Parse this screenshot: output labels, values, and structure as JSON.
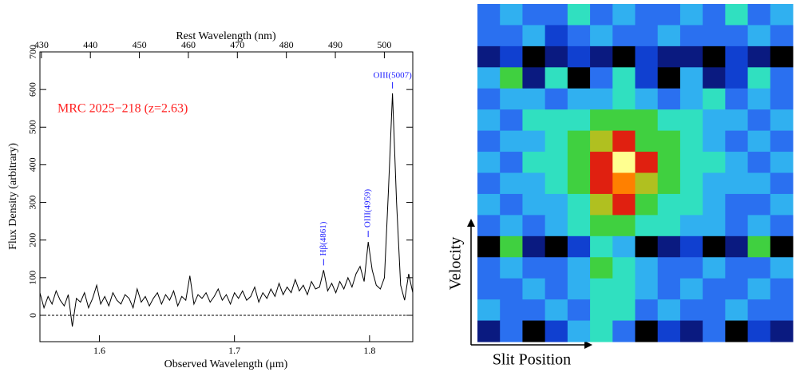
{
  "chart_data": [
    {
      "type": "line",
      "xlabel": "Observed Wavelength (μm)",
      "ylabel": "Flux Density (arbitrary)",
      "x2label": "Rest Wavelength (nm)",
      "label": "MRC 2025−218 (z=2.63)",
      "label_color": "#ff2020",
      "color": "#000000",
      "x": [
        1.556,
        1.559,
        1.562,
        1.565,
        1.568,
        1.571,
        1.574,
        1.577,
        1.58,
        1.583,
        1.586,
        1.589,
        1.592,
        1.595,
        1.598,
        1.601,
        1.604,
        1.607,
        1.61,
        1.613,
        1.616,
        1.619,
        1.622,
        1.625,
        1.628,
        1.631,
        1.634,
        1.637,
        1.64,
        1.643,
        1.646,
        1.649,
        1.652,
        1.655,
        1.658,
        1.661,
        1.664,
        1.667,
        1.67,
        1.673,
        1.676,
        1.679,
        1.682,
        1.685,
        1.688,
        1.691,
        1.694,
        1.697,
        1.7,
        1.703,
        1.706,
        1.709,
        1.712,
        1.715,
        1.718,
        1.721,
        1.724,
        1.727,
        1.73,
        1.733,
        1.736,
        1.739,
        1.742,
        1.745,
        1.748,
        1.751,
        1.754,
        1.757,
        1.76,
        1.763,
        1.766,
        1.769,
        1.772,
        1.775,
        1.778,
        1.781,
        1.784,
        1.787,
        1.79,
        1.793,
        1.796,
        1.799,
        1.802,
        1.805,
        1.808,
        1.811,
        1.814,
        1.817,
        1.82,
        1.823,
        1.826,
        1.829,
        1.832
      ],
      "values": [
        60,
        20,
        50,
        30,
        65,
        40,
        25,
        55,
        -30,
        45,
        35,
        60,
        20,
        45,
        80,
        30,
        50,
        25,
        60,
        40,
        30,
        55,
        45,
        20,
        70,
        35,
        50,
        25,
        45,
        60,
        30,
        55,
        40,
        65,
        25,
        50,
        40,
        105,
        30,
        55,
        45,
        60,
        35,
        50,
        70,
        40,
        55,
        30,
        60,
        45,
        65,
        40,
        50,
        75,
        35,
        60,
        45,
        70,
        50,
        85,
        55,
        75,
        60,
        95,
        65,
        80,
        55,
        90,
        70,
        75,
        120,
        65,
        85,
        60,
        90,
        70,
        100,
        75,
        110,
        130,
        90,
        195,
        120,
        80,
        70,
        100,
        330,
        590,
        300,
        80,
        40,
        110,
        60
      ],
      "xlim": [
        1.556,
        1.832
      ],
      "xticks": [
        1.6,
        1.7,
        1.8
      ],
      "ylim": [
        -70,
        700
      ],
      "yticks": [
        0,
        100,
        200,
        300,
        400,
        500,
        600,
        700
      ],
      "x2lim": [
        429.7,
        505.8
      ],
      "x2ticks": [
        430,
        440,
        450,
        460,
        470,
        480,
        490,
        500
      ],
      "zero_line": true,
      "annotations": [
        {
          "text": "Hβ(4861)",
          "x": 1.766,
          "orientation": "vertical"
        },
        {
          "text": "OIII(4959)",
          "x": 1.799,
          "orientation": "vertical"
        },
        {
          "text": "OIII(5007)",
          "x": 1.817,
          "orientation": "horizontal"
        }
      ],
      "annotation_color": "#1a1aff"
    },
    {
      "type": "heatmap",
      "xlabel": "Slit Position",
      "ylabel": "Velocity",
      "vlim": [
        0,
        10
      ],
      "colormap": [
        "#000000",
        "#0a1a80",
        "#1040d0",
        "#2a70f0",
        "#30b0f0",
        "#30e0c0",
        "#40d040",
        "#b0c020",
        "#e02010",
        "#ff8000",
        "#ffff90"
      ],
      "values": [
        [
          3,
          4,
          3,
          3,
          5,
          3,
          4,
          3,
          3,
          4,
          3,
          5,
          3,
          4
        ],
        [
          3,
          3,
          4,
          2,
          3,
          4,
          3,
          3,
          4,
          3,
          3,
          3,
          4,
          3
        ],
        [
          1,
          2,
          0,
          1,
          2,
          1,
          0,
          2,
          1,
          1,
          0,
          2,
          1,
          0
        ],
        [
          4,
          6,
          1,
          5,
          0,
          3,
          5,
          2,
          0,
          4,
          1,
          2,
          5,
          3
        ],
        [
          3,
          4,
          4,
          3,
          4,
          4,
          5,
          4,
          3,
          4,
          5,
          3,
          4,
          3
        ],
        [
          4,
          3,
          5,
          5,
          5,
          6,
          6,
          6,
          5,
          5,
          4,
          4,
          3,
          4
        ],
        [
          3,
          4,
          4,
          5,
          6,
          7,
          8,
          6,
          6,
          5,
          4,
          3,
          4,
          3
        ],
        [
          4,
          3,
          5,
          5,
          6,
          8,
          10,
          8,
          6,
          5,
          5,
          4,
          3,
          4
        ],
        [
          3,
          4,
          4,
          5,
          6,
          8,
          9,
          7,
          6,
          5,
          4,
          4,
          4,
          3
        ],
        [
          4,
          3,
          4,
          4,
          5,
          7,
          8,
          6,
          5,
          5,
          4,
          3,
          3,
          4
        ],
        [
          3,
          4,
          3,
          4,
          5,
          6,
          6,
          5,
          5,
          4,
          4,
          3,
          4,
          3
        ],
        [
          0,
          6,
          1,
          0,
          2,
          5,
          4,
          0,
          1,
          2,
          0,
          1,
          6,
          0
        ],
        [
          3,
          4,
          3,
          3,
          4,
          6,
          5,
          4,
          3,
          3,
          4,
          3,
          3,
          4
        ],
        [
          3,
          3,
          4,
          3,
          4,
          5,
          5,
          4,
          3,
          4,
          3,
          3,
          4,
          3
        ],
        [
          4,
          3,
          3,
          4,
          3,
          5,
          5,
          3,
          4,
          3,
          3,
          4,
          3,
          3
        ],
        [
          1,
          3,
          0,
          2,
          4,
          5,
          3,
          0,
          2,
          1,
          3,
          0,
          2,
          1
        ]
      ]
    }
  ]
}
